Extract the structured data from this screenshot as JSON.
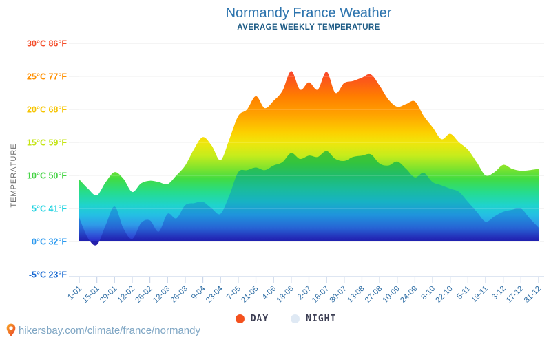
{
  "header": {
    "title": "Normandy France Weather",
    "subtitle": "AVERAGE WEEKLY TEMPERATURE"
  },
  "y_axis": {
    "label": "TEMPERATURE",
    "ticks": [
      {
        "text": "30°C 86°F",
        "t": 30,
        "color": "#f44d2a"
      },
      {
        "text": "25°C 77°F",
        "t": 25,
        "color": "#ff9000"
      },
      {
        "text": "20°C 68°F",
        "t": 20,
        "color": "#f6c400"
      },
      {
        "text": "15°C 59°F",
        "t": 15,
        "color": "#c4e414"
      },
      {
        "text": "10°C 50°F",
        "t": 10,
        "color": "#44d344"
      },
      {
        "text": "5°C 41°F",
        "t": 5,
        "color": "#22d3e0"
      },
      {
        "text": "0°C 32°F",
        "t": 0,
        "color": "#2d9aef"
      },
      {
        "text": "-5°C 23°F",
        "t": -5,
        "color": "#1a6ad2"
      }
    ]
  },
  "x_axis": {
    "tick_labels": [
      "1-01",
      "15-01",
      "29-01",
      "12-02",
      "26-02",
      "12-03",
      "26-03",
      "9-04",
      "23-04",
      "7-05",
      "21-05",
      "4-06",
      "18-06",
      "2-07",
      "16-07",
      "30-07",
      "13-08",
      "27-08",
      "10-09",
      "24-09",
      "8-10",
      "22-10",
      "5-11",
      "19-11",
      "3-12",
      "17-12",
      "31-12"
    ],
    "label_color": "#2e6da4"
  },
  "legend": {
    "day": {
      "label": "DAY",
      "color": "#f4511e"
    },
    "night": {
      "label": "NIGHT",
      "color": "#dfe9f4"
    }
  },
  "footer": {
    "icon": "location-pin-icon",
    "url": "hikersbay.com/climate/france/normandy"
  },
  "chart_data": {
    "type": "area",
    "title": "Normandy France Weather",
    "subtitle": "AVERAGE WEEKLY TEMPERATURE",
    "ylabel": "TEMPERATURE",
    "ylim": [
      -5,
      30
    ],
    "grid": true,
    "legend_position": "bottom",
    "x_step": "weekly",
    "x_range": [
      "1-01",
      "31-12"
    ],
    "x_tick_labels": [
      "1-01",
      "15-01",
      "29-01",
      "12-02",
      "26-02",
      "12-03",
      "26-03",
      "9-04",
      "23-04",
      "7-05",
      "21-05",
      "4-06",
      "18-06",
      "2-07",
      "16-07",
      "30-07",
      "13-08",
      "27-08",
      "10-09",
      "24-09",
      "8-10",
      "22-10",
      "5-11",
      "19-11",
      "3-12",
      "17-12",
      "31-12"
    ],
    "series": [
      {
        "name": "DAY",
        "unit": "°C",
        "values": [
          9.4,
          8.0,
          7.0,
          9.0,
          10.5,
          9.5,
          7.5,
          8.8,
          9.2,
          9.0,
          8.7,
          10.0,
          11.5,
          14.0,
          15.8,
          14.5,
          12.3,
          15.5,
          19.0,
          20.0,
          22.0,
          20.2,
          21.3,
          22.8,
          25.8,
          23.0,
          24.1,
          23.0,
          25.7,
          22.5,
          24.0,
          24.3,
          24.8,
          25.3,
          23.6,
          21.5,
          20.4,
          20.8,
          21.2,
          19.0,
          17.3,
          15.5,
          16.3,
          15.0,
          13.9,
          12.0,
          10.0,
          10.5,
          11.6,
          11.0,
          10.7,
          10.8,
          11.0
        ]
      },
      {
        "name": "NIGHT",
        "unit": "°C",
        "values": [
          3.6,
          0.5,
          -0.5,
          2.5,
          5.3,
          2.0,
          0.4,
          2.8,
          3.2,
          1.5,
          4.2,
          3.5,
          5.5,
          5.8,
          6.0,
          5.0,
          4.2,
          7.0,
          10.5,
          10.8,
          11.2,
          10.8,
          11.5,
          12.0,
          13.4,
          12.5,
          13.0,
          12.8,
          13.7,
          12.5,
          12.2,
          12.8,
          13.0,
          13.2,
          11.8,
          11.5,
          12.1,
          11.0,
          9.7,
          10.4,
          9.0,
          8.5,
          8.0,
          7.5,
          6.0,
          4.5,
          3.0,
          3.8,
          4.5,
          4.8,
          5.0,
          3.5,
          2.1
        ]
      }
    ],
    "gradient_day": [
      [
        27.0,
        "#f5384e"
      ],
      [
        25.0,
        "#fb4f1f"
      ],
      [
        22.0,
        "#ff7d00"
      ],
      [
        19.0,
        "#ffa600"
      ],
      [
        16.5,
        "#fcd000"
      ],
      [
        15.0,
        "#f0e60c"
      ],
      [
        13.0,
        "#c6ec1c"
      ],
      [
        11.0,
        "#7de32e"
      ],
      [
        9.5,
        "#42dc42"
      ],
      [
        7.5,
        "#26dc8c"
      ],
      [
        5.5,
        "#1fd4cc"
      ],
      [
        4.0,
        "#24bfe4"
      ],
      [
        2.5,
        "#2f9ae8"
      ],
      [
        1.0,
        "#2f55d8"
      ],
      [
        0.0,
        "#2a2ac8"
      ],
      [
        -1.5,
        "#4b2cb4"
      ],
      [
        -5.0,
        "#55309c"
      ]
    ],
    "gradient_night": [
      [
        14.0,
        "#4cc22e"
      ],
      [
        12.0,
        "#34c43c"
      ],
      [
        10.0,
        "#20bc6a"
      ],
      [
        8.0,
        "#1abc9a"
      ],
      [
        6.0,
        "#17b2c4"
      ],
      [
        4.0,
        "#1f93dc"
      ],
      [
        2.0,
        "#2762d4"
      ],
      [
        0.5,
        "#232ab6"
      ],
      [
        0.0,
        "#1f1fae"
      ],
      [
        -1.5,
        "#45259e"
      ],
      [
        -5.0,
        "#4a2a8c"
      ]
    ],
    "grid_color": "#e9e9e9",
    "axis_line_color": "#c9d6ea"
  }
}
